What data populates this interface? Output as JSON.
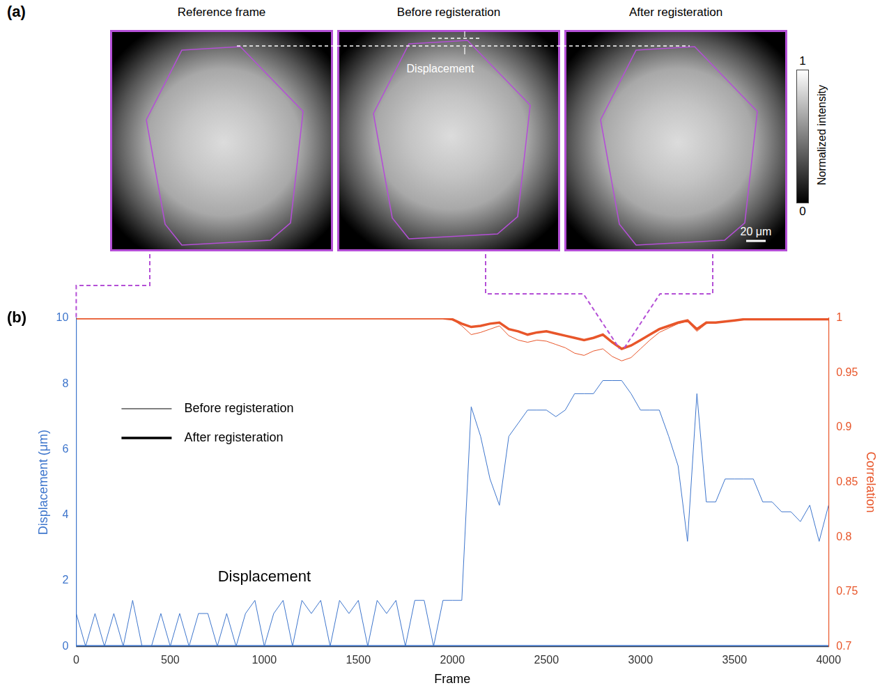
{
  "panel_a": {
    "label": "(a)",
    "titles": [
      "Reference frame",
      "Before registeration",
      "After registeration"
    ],
    "displacement_label": "Displacement",
    "scale_bar": "20 μm",
    "colorbar": {
      "title": "Normalized intensity",
      "range": [
        0,
        1
      ],
      "ticks": [
        0,
        1
      ]
    }
  },
  "chart_data": {
    "type": "line",
    "panel_label": "(b)",
    "annotations": [
      {
        "text": "Displacement",
        "x": 1000,
        "y": 2.1
      }
    ],
    "x_label": "Frame",
    "y_label": "Displacement (μm)",
    "y2_label": "Correlation",
    "xlim": [
      0,
      4000
    ],
    "xticks": [
      0,
      500,
      1000,
      1500,
      2000,
      2500,
      3000,
      3500,
      4000
    ],
    "ylim": [
      0,
      10
    ],
    "yticks": [
      0,
      2,
      4,
      6,
      8,
      10
    ],
    "y2lim": [
      0.7,
      1
    ],
    "y2ticks": [
      0.7,
      0.75,
      0.8,
      0.85,
      0.9,
      0.95,
      1
    ],
    "grid": false,
    "legend": "upper left",
    "x": [
      0,
      50,
      100,
      150,
      200,
      250,
      300,
      350,
      400,
      450,
      500,
      550,
      600,
      650,
      700,
      750,
      800,
      850,
      900,
      950,
      1000,
      1050,
      1100,
      1150,
      1200,
      1250,
      1300,
      1350,
      1400,
      1450,
      1500,
      1550,
      1600,
      1650,
      1700,
      1750,
      1800,
      1850,
      1900,
      1950,
      2000,
      2050,
      2100,
      2150,
      2200,
      2250,
      2300,
      2350,
      2400,
      2450,
      2500,
      2550,
      2600,
      2650,
      2700,
      2750,
      2800,
      2850,
      2900,
      2950,
      3000,
      3050,
      3100,
      3150,
      3200,
      3250,
      3300,
      3350,
      3400,
      3450,
      3500,
      3550,
      3600,
      3650,
      3700,
      3750,
      3800,
      3850,
      3900,
      3950,
      4000
    ],
    "series": [
      {
        "name": "Before registeration",
        "color": "#3d75cc",
        "axis": "y",
        "line_style": "thin",
        "values": [
          1,
          0,
          1,
          0,
          1,
          0,
          1.4,
          0,
          0,
          1,
          0,
          1,
          0,
          1,
          1,
          0,
          1,
          0,
          1,
          1.4,
          0,
          1,
          1.4,
          0,
          1.4,
          1,
          1.4,
          0,
          1.4,
          1,
          1.4,
          0,
          1.4,
          1,
          1.4,
          0,
          1.4,
          1.4,
          0,
          1.4,
          1.4,
          1.4,
          7.3,
          6.4,
          5.1,
          4.3,
          6.4,
          6.8,
          7.2,
          7.2,
          7.2,
          7.0,
          7.2,
          7.7,
          7.7,
          7.7,
          8.1,
          8.1,
          8.1,
          7.7,
          7.2,
          7.2,
          7.2,
          6.4,
          5.5,
          3.2,
          7.7,
          4.4,
          4.4,
          5.1,
          5.1,
          5.1,
          5.1,
          4.4,
          4.4,
          4.1,
          4.1,
          3.8,
          4.3,
          3.2,
          4.3
        ]
      },
      {
        "name": "After registeration",
        "color": "#3d75cc",
        "axis": "y",
        "line_style": "thick",
        "values": [
          0,
          0,
          0,
          0,
          0,
          0,
          0,
          0,
          0,
          0,
          0,
          0,
          0,
          0,
          0,
          0,
          0,
          0,
          0,
          0,
          0,
          0,
          0,
          0,
          0,
          0,
          0,
          0,
          0,
          0,
          0,
          0,
          0,
          0,
          0,
          0,
          0,
          0,
          0,
          0,
          0,
          0,
          0,
          0,
          0,
          0,
          0,
          0,
          0,
          0,
          0,
          0,
          0,
          0,
          0,
          0,
          0,
          0,
          0,
          0,
          0,
          0,
          0,
          0,
          0,
          0,
          0,
          0,
          0,
          0,
          0,
          0,
          0,
          0,
          0,
          0,
          0,
          0,
          0,
          0,
          0
        ]
      },
      {
        "name": "Before registeration",
        "color": "#e8562a",
        "axis": "y2",
        "line_style": "thin",
        "values": [
          1,
          1,
          1,
          1,
          1,
          1,
          1,
          1,
          1,
          1,
          1,
          1,
          1,
          1,
          1,
          1,
          1,
          1,
          1,
          1,
          1,
          1,
          1,
          1,
          1,
          1,
          1,
          1,
          1,
          1,
          1,
          1,
          1,
          1,
          1,
          1,
          1,
          1,
          1,
          1,
          0.999,
          0.993,
          0.985,
          0.987,
          0.99,
          0.993,
          0.984,
          0.98,
          0.978,
          0.98,
          0.979,
          0.976,
          0.973,
          0.968,
          0.966,
          0.97,
          0.972,
          0.965,
          0.961,
          0.964,
          0.972,
          0.98,
          0.987,
          0.991,
          0.995,
          0.997,
          0.988,
          0.995,
          0.996,
          0.997,
          0.998,
          0.999,
          0.999,
          0.999,
          0.999,
          0.999,
          0.999,
          0.999,
          0.999,
          0.999,
          0.999
        ]
      },
      {
        "name": "After registeration",
        "color": "#e8562a",
        "axis": "y2",
        "line_style": "thick",
        "values": [
          1,
          1,
          1,
          1,
          1,
          1,
          1,
          1,
          1,
          1,
          1,
          1,
          1,
          1,
          1,
          1,
          1,
          1,
          1,
          1,
          1,
          1,
          1,
          1,
          1,
          1,
          1,
          1,
          1,
          1,
          1,
          1,
          1,
          1,
          1,
          1,
          1,
          1,
          1,
          1,
          0.999,
          0.995,
          0.992,
          0.993,
          0.995,
          0.996,
          0.99,
          0.988,
          0.985,
          0.987,
          0.988,
          0.986,
          0.984,
          0.982,
          0.98,
          0.982,
          0.985,
          0.978,
          0.972,
          0.975,
          0.98,
          0.985,
          0.99,
          0.993,
          0.996,
          0.998,
          0.99,
          0.996,
          0.996,
          0.997,
          0.998,
          0.999,
          0.999,
          0.999,
          0.999,
          0.999,
          0.999,
          0.999,
          0.999,
          0.999,
          0.999
        ]
      }
    ]
  }
}
